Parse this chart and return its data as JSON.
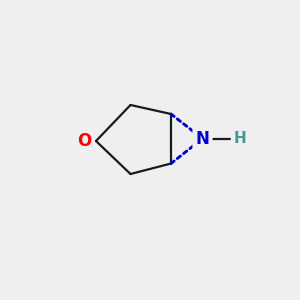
{
  "bg_color": "#efefef",
  "bond_color": "#1a1a1a",
  "O_color": "#ff0000",
  "N_color": "#0000cc",
  "H_color": "#4a9696",
  "O_label": "O",
  "N_label": "N",
  "H_label": "H",
  "font_size": 12,
  "lw": 1.6,
  "figsize": [
    3.0,
    3.0
  ],
  "dpi": 100,
  "xlim": [
    0,
    10
  ],
  "ylim": [
    0,
    10
  ]
}
